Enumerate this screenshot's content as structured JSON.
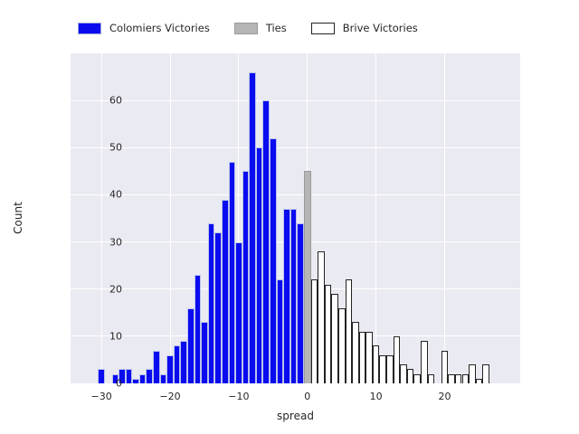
{
  "legend": {
    "items": [
      {
        "label": "Colomiers Victories",
        "color": "#0b0bf0",
        "edge": "#9aa6d6",
        "series_key": "colomiers"
      },
      {
        "label": "Ties",
        "color": "#b5b5b5",
        "edge": "#9a9a9a",
        "series_key": "ties"
      },
      {
        "label": "Brive Victories",
        "color": "#ffffff",
        "edge": "#232323",
        "series_key": "brive"
      }
    ]
  },
  "axes": {
    "xlabel": "spread",
    "ylabel": "Count"
  },
  "colors": {
    "plot_background": "#eaeaf2",
    "grid": "#ffffff",
    "text": "#262626",
    "colomiers_fill": "#0b0bf0",
    "ties_fill": "#b5b5b5",
    "brive_fill": "#ffffff",
    "brive_edge": "#232323"
  },
  "chart_data": {
    "type": "bar",
    "subtype": "histogram",
    "title": "",
    "xlabel": "spread",
    "ylabel": "Count",
    "binwidth": 1,
    "x_ticks": [
      -30,
      -20,
      -10,
      0,
      10,
      20
    ],
    "y_ticks": [
      0,
      10,
      20,
      30,
      40,
      50,
      60
    ],
    "xlim": [
      -34.5,
      31
    ],
    "ylim": [
      0,
      70
    ],
    "grid": true,
    "legend_position": "top",
    "series": [
      {
        "name": "Colomiers Victories",
        "class": "colomiers",
        "x": [
          -30,
          -29,
          -28,
          -27,
          -26,
          -25,
          -24,
          -23,
          -22,
          -21,
          -20,
          -19,
          -18,
          -17,
          -16,
          -15,
          -14,
          -13,
          -12,
          -11,
          -10,
          -9,
          -8,
          -7,
          -6,
          -5,
          -4,
          -3,
          -2,
          -1
        ],
        "values": [
          3,
          0,
          2,
          3,
          3,
          1,
          2,
          3,
          7,
          2,
          6,
          8,
          9,
          16,
          23,
          13,
          34,
          32,
          39,
          47,
          30,
          45,
          66,
          50,
          60,
          52,
          22,
          37,
          37,
          34
        ]
      },
      {
        "name": "Ties",
        "class": "ties",
        "x": [
          0
        ],
        "values": [
          45
        ]
      },
      {
        "name": "Brive Victories",
        "class": "brive",
        "x": [
          1,
          2,
          3,
          4,
          5,
          6,
          7,
          8,
          9,
          10,
          11,
          12,
          13,
          14,
          15,
          16,
          17,
          18,
          19,
          20,
          21,
          22,
          23,
          24,
          25,
          26
        ],
        "values": [
          22,
          28,
          21,
          19,
          16,
          22,
          13,
          11,
          11,
          8,
          6,
          6,
          10,
          4,
          3,
          2,
          9,
          2,
          0,
          7,
          2,
          2,
          2,
          4,
          1,
          4
        ]
      }
    ]
  }
}
